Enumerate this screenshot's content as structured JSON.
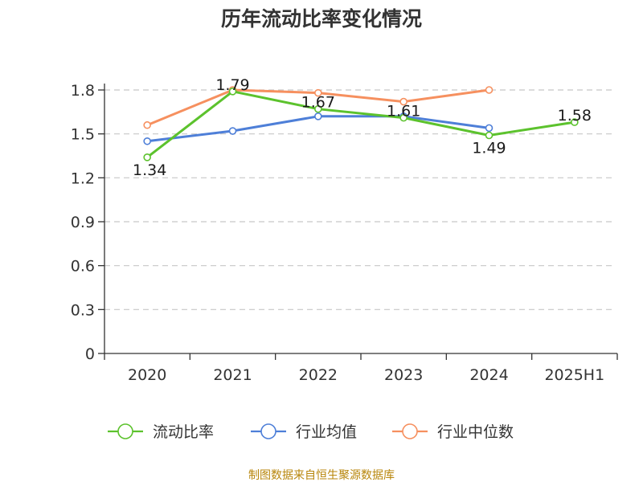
{
  "chart_data": {
    "type": "line",
    "title": "历年流动比率变化情况",
    "categories": [
      "2020",
      "2021",
      "2022",
      "2023",
      "2024",
      "2025H1"
    ],
    "ylim": [
      0,
      1.95
    ],
    "yticks": [
      "0",
      "0.3",
      "0.6",
      "0.9",
      "1.2",
      "1.5",
      "1.8"
    ],
    "ytick_values": [
      0,
      0.3,
      0.6,
      0.9,
      1.2,
      1.5,
      1.8
    ],
    "grid": true,
    "legend_position": "bottom",
    "series": [
      {
        "name": "流动比率",
        "color": "#5cc22d",
        "values": [
          1.34,
          1.79,
          1.67,
          1.61,
          1.49,
          1.58
        ],
        "data_labels": [
          "1.34",
          "1.79",
          "1.67",
          "1.61",
          "1.49",
          "1.58"
        ]
      },
      {
        "name": "行业均值",
        "color": "#4e7fd8",
        "values": [
          1.45,
          1.52,
          1.62,
          1.62,
          1.54,
          null
        ]
      },
      {
        "name": "行业中位数",
        "color": "#f6905f",
        "values": [
          1.56,
          1.8,
          1.78,
          1.72,
          1.8,
          null
        ]
      }
    ]
  },
  "source": "制图数据来自恒生聚源数据库"
}
